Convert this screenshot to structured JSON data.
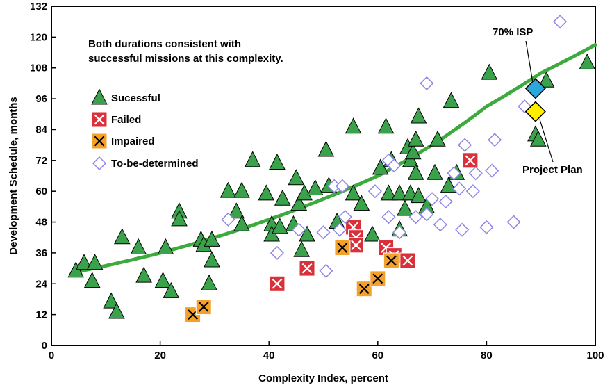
{
  "chart_data": {
    "type": "scatter",
    "title": "",
    "xlabel": "Complexity Index, percent",
    "ylabel": "Development Schedule, months",
    "xlim": [
      0,
      100
    ],
    "ylim": [
      0,
      132
    ],
    "xticks": [
      "0",
      "20",
      "40",
      "60",
      "80",
      "100"
    ],
    "yticks": [
      "0",
      "12",
      "24",
      "36",
      "48",
      "60",
      "72",
      "84",
      "96",
      "108",
      "120",
      "132"
    ],
    "grid": false,
    "legend_placement": "top-left",
    "note": "Both durations consistent with successful missions at this complexity.",
    "trend_curve": {
      "type": "exponential",
      "color": "#3daa3d",
      "points": [
        [
          10,
          31
        ],
        [
          20,
          36
        ],
        [
          30,
          42
        ],
        [
          40,
          49
        ],
        [
          50,
          57
        ],
        [
          60,
          66
        ],
        [
          70,
          78
        ],
        [
          80,
          93
        ],
        [
          90,
          106
        ],
        [
          100,
          117
        ]
      ]
    },
    "callouts": [
      {
        "label": "70% ISP",
        "x": 89,
        "y": 100,
        "marker": "diamond",
        "color": "#29a8e0"
      },
      {
        "label": "Project Plan",
        "x": 89,
        "y": 91,
        "marker": "diamond",
        "color": "#ffee00"
      }
    ],
    "series": [
      {
        "name": "Sucessful",
        "marker": "triangle",
        "color": "#39a24a",
        "points": [
          [
            4.5,
            29
          ],
          [
            6,
            32
          ],
          [
            8,
            32
          ],
          [
            7.5,
            25
          ],
          [
            11,
            17
          ],
          [
            12,
            13
          ],
          [
            13,
            42
          ],
          [
            16,
            38
          ],
          [
            17,
            27
          ],
          [
            21,
            38
          ],
          [
            20.5,
            25
          ],
          [
            22,
            21
          ],
          [
            23.5,
            52
          ],
          [
            23.5,
            49
          ],
          [
            27.5,
            41
          ],
          [
            28,
            39
          ],
          [
            29,
            24
          ],
          [
            29.5,
            33
          ],
          [
            29.5,
            41
          ],
          [
            32.5,
            60
          ],
          [
            34,
            52
          ],
          [
            35,
            60
          ],
          [
            35,
            47
          ],
          [
            37,
            72
          ],
          [
            39.5,
            59
          ],
          [
            40.5,
            47
          ],
          [
            40.5,
            43
          ],
          [
            41.5,
            71
          ],
          [
            42,
            46
          ],
          [
            42.5,
            57
          ],
          [
            44.5,
            47
          ],
          [
            45,
            65
          ],
          [
            45.5,
            55
          ],
          [
            46,
            37
          ],
          [
            46.5,
            59
          ],
          [
            47,
            43
          ],
          [
            48.5,
            61
          ],
          [
            50.5,
            76
          ],
          [
            51,
            62
          ],
          [
            52.5,
            48
          ],
          [
            55.5,
            85
          ],
          [
            55.5,
            59
          ],
          [
            57,
            55
          ],
          [
            59,
            43
          ],
          [
            60.5,
            69
          ],
          [
            61.5,
            85
          ],
          [
            62,
            59
          ],
          [
            62.5,
            72
          ],
          [
            64,
            59
          ],
          [
            64,
            45
          ],
          [
            65,
            53
          ],
          [
            65.5,
            77
          ],
          [
            66,
            59
          ],
          [
            66,
            72
          ],
          [
            66.5,
            75
          ],
          [
            67,
            67
          ],
          [
            67,
            80
          ],
          [
            67.5,
            58
          ],
          [
            67.5,
            89
          ],
          [
            69,
            54
          ],
          [
            70.5,
            67
          ],
          [
            71,
            80
          ],
          [
            73,
            62
          ],
          [
            73.5,
            95
          ],
          [
            74.5,
            67
          ],
          [
            80.5,
            106
          ],
          [
            89,
            82
          ],
          [
            89.5,
            80
          ],
          [
            91,
            103
          ],
          [
            98.5,
            110
          ]
        ]
      },
      {
        "name": "Failed",
        "marker": "x-square",
        "color": "#d9303a",
        "points": [
          [
            41.5,
            24
          ],
          [
            47,
            30
          ],
          [
            55.5,
            46
          ],
          [
            56,
            42
          ],
          [
            56,
            39
          ],
          [
            61.5,
            38
          ],
          [
            63,
            35
          ],
          [
            65.5,
            33
          ],
          [
            77,
            72
          ]
        ]
      },
      {
        "name": "Impaired",
        "marker": "x-square",
        "color": "#f4a12a",
        "points": [
          [
            26,
            12
          ],
          [
            28,
            15
          ],
          [
            53.5,
            38
          ],
          [
            57.5,
            22
          ],
          [
            60,
            26
          ],
          [
            62.5,
            33
          ]
        ]
      },
      {
        "name": "To-be-determined",
        "marker": "diamond-open",
        "color": "#8f86e6",
        "points": [
          [
            32.5,
            49
          ],
          [
            41.5,
            36
          ],
          [
            45.5,
            45
          ],
          [
            50,
            44
          ],
          [
            50.5,
            29
          ],
          [
            52,
            62
          ],
          [
            53,
            45
          ],
          [
            53.5,
            62
          ],
          [
            54,
            50
          ],
          [
            59.5,
            60
          ],
          [
            62,
            72
          ],
          [
            62,
            50
          ],
          [
            63,
            70
          ],
          [
            64,
            44
          ],
          [
            67,
            50
          ],
          [
            69,
            102
          ],
          [
            69,
            51
          ],
          [
            70,
            57
          ],
          [
            71.5,
            47
          ],
          [
            72.5,
            56
          ],
          [
            74,
            67
          ],
          [
            75,
            61
          ],
          [
            75.5,
            45
          ],
          [
            76,
            78
          ],
          [
            77.5,
            60
          ],
          [
            78,
            67
          ],
          [
            80,
            46
          ],
          [
            81,
            68
          ],
          [
            81.5,
            80
          ],
          [
            85,
            48
          ],
          [
            87,
            93
          ],
          [
            93.5,
            126
          ]
        ]
      }
    ]
  }
}
